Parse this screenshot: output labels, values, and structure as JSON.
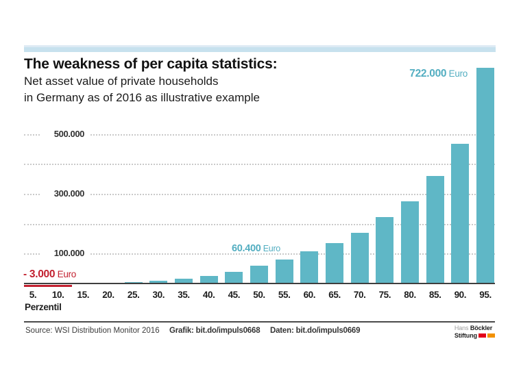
{
  "colors": {
    "bar_teal": "#5fb7c6",
    "teal_text": "#53aec1",
    "negative_red": "#c2202f",
    "stripe_blue": "#c7e1ee",
    "grid_gray": "#c9c9c9",
    "axis_dark": "#3e3e3e",
    "text_dark": "#111111",
    "footer_text": "#3f3f3f",
    "logo_gray": "#9b9b9b",
    "logo_red": "#e2001a",
    "logo_orange": "#f29100"
  },
  "header": {
    "title": "The weakness of per capita statistics:",
    "subtitle_line1": "Net asset value of private households",
    "subtitle_line2": "in Germany as of 2016 as illustrative example"
  },
  "chart_data": {
    "type": "bar",
    "title": "Net asset value of private households in Germany as of 2016, by percentile",
    "xlabel": "Perzentil",
    "unit": "Euro",
    "categories": [
      "5.",
      "10.",
      "15.",
      "20.",
      "25.",
      "30.",
      "35.",
      "40.",
      "45.",
      "50.",
      "55.",
      "60.",
      "65.",
      "70.",
      "75.",
      "80.",
      "85.",
      "90.",
      "95."
    ],
    "values": [
      -3000,
      0,
      0,
      1000,
      5000,
      9000,
      15000,
      25000,
      40000,
      60400,
      80000,
      107000,
      135000,
      170000,
      222000,
      275000,
      360000,
      468000,
      722000
    ],
    "values_note": "Values for 5., 50. and 95. percentile are labeled in the chart (-3.000 / 60.400 / 722.000 Euro); all other values estimated from gridlines",
    "ylim": [
      0,
      740000
    ],
    "grid": "horizontal-dotted",
    "yticks": [
      {
        "value": 100000,
        "label": "100.000"
      },
      {
        "value": 200000,
        "label": ""
      },
      {
        "value": 300000,
        "label": "300.000"
      },
      {
        "value": 400000,
        "label": ""
      },
      {
        "value": 500000,
        "label": "500.000"
      }
    ],
    "annotations": [
      {
        "anchor": "95.",
        "number": "722.000",
        "unit": "Euro"
      },
      {
        "anchor": "50.",
        "number": "60.400",
        "unit": "Euro"
      },
      {
        "anchor": "5.",
        "number": "- 3.000",
        "unit": "Euro"
      }
    ]
  },
  "footer": {
    "source": "Source: WSI Distribution Monitor 2016",
    "grafik": "Grafik: bit.do/impuls0668",
    "daten": "Daten: bit.do/impuls0669",
    "logo": {
      "name_light": "Hans",
      "name_bold": "Böckler",
      "line2": "Stiftung"
    }
  }
}
